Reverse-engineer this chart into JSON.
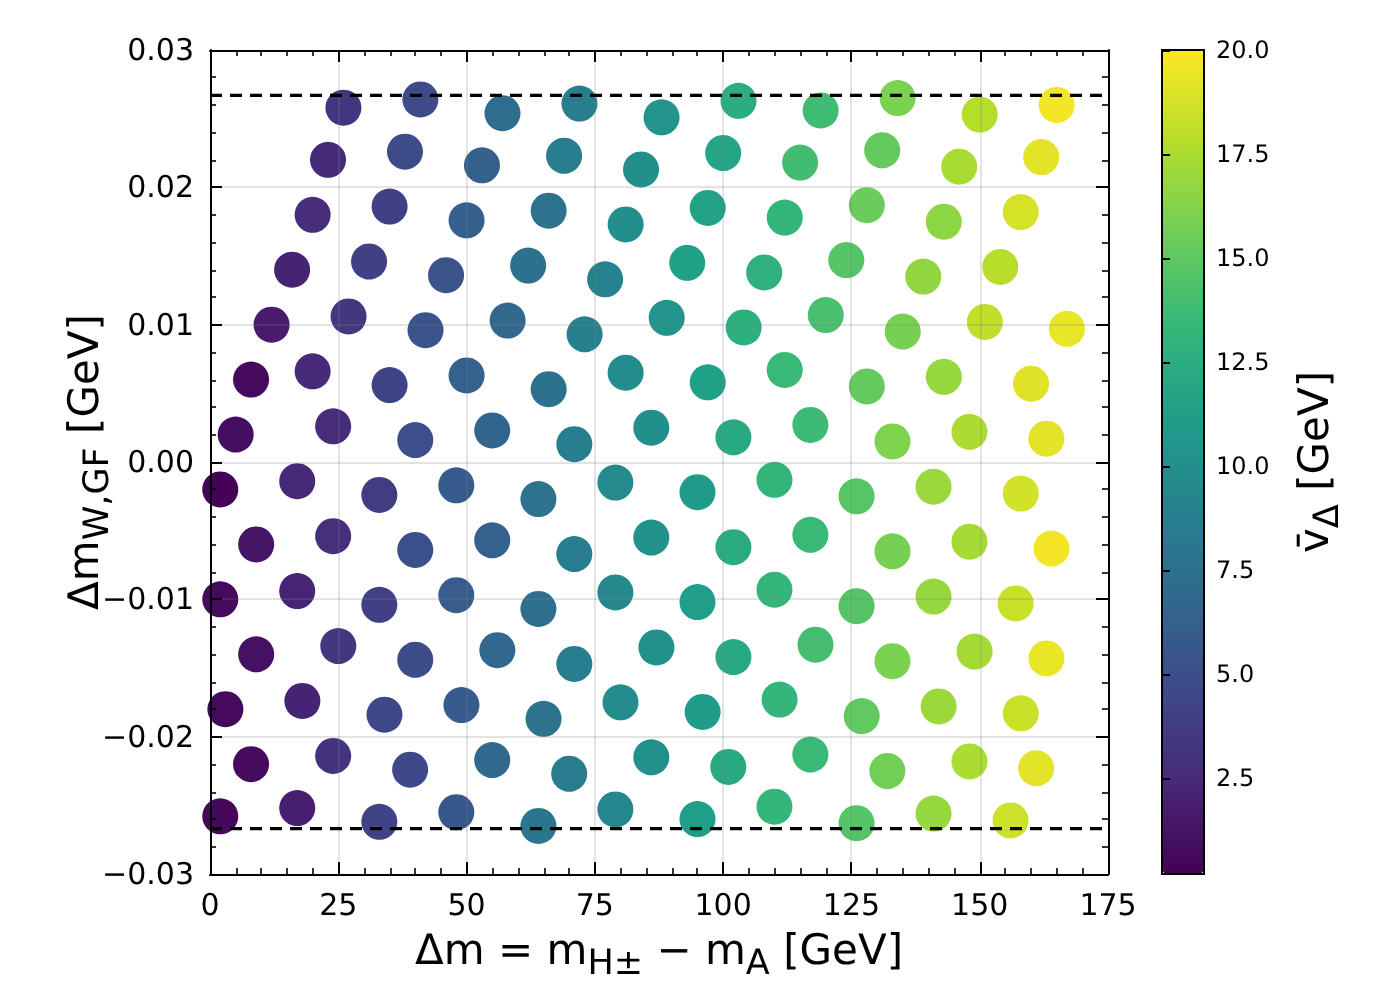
{
  "chart_data": {
    "type": "scatter",
    "xlabel": "Δm = m$_{H±}$ − m$_{A}$ [GeV]",
    "ylabel": "Δm$_{W,GF}$ [GeV]",
    "clabel": "v̄$_{Δ}$ [GeV]",
    "x": [
      2,
      17,
      33,
      48,
      64,
      79,
      95,
      110,
      126,
      141,
      156,
      8,
      24,
      39,
      55,
      70,
      86,
      101,
      117,
      132,
      148,
      161,
      3,
      18,
      34,
      49,
      65,
      80,
      96,
      111,
      127,
      142,
      158,
      9,
      25,
      40,
      56,
      71,
      87,
      102,
      118,
      133,
      149,
      163,
      2,
      17,
      33,
      48,
      64,
      79,
      95,
      110,
      126,
      141,
      157,
      9,
      24,
      40,
      55,
      71,
      86,
      102,
      117,
      133,
      148,
      164,
      2,
      17,
      33,
      48,
      64,
      79,
      95,
      110,
      126,
      141,
      158,
      5,
      24,
      40,
      55,
      71,
      86,
      102,
      117,
      133,
      148,
      163,
      8,
      20,
      35,
      50,
      66,
      81,
      97,
      112,
      128,
      143,
      160,
      12,
      27,
      42,
      58,
      73,
      89,
      104,
      120,
      135,
      151,
      167,
      16,
      31,
      46,
      62,
      77,
      93,
      108,
      124,
      139,
      154,
      20,
      35,
      50,
      66,
      81,
      97,
      112,
      128,
      143,
      158,
      23,
      38,
      53,
      69,
      84,
      100,
      115,
      131,
      146,
      162,
      26,
      41,
      57,
      72,
      88,
      103,
      119,
      134,
      150,
      165
    ],
    "values": [
      -0.0258,
      -0.0252,
      -0.0262,
      -0.0255,
      -0.0265,
      -0.0253,
      -0.026,
      -0.0251,
      -0.0263,
      -0.0256,
      -0.0261,
      -0.022,
      -0.0214,
      -0.0224,
      -0.0217,
      -0.0227,
      -0.0215,
      -0.0222,
      -0.0213,
      -0.0225,
      -0.0218,
      -0.0223,
      -0.018,
      -0.0174,
      -0.0184,
      -0.0177,
      -0.0187,
      -0.0175,
      -0.0182,
      -0.0173,
      -0.0185,
      -0.0178,
      -0.0183,
      -0.014,
      -0.0134,
      -0.0144,
      -0.0137,
      -0.0147,
      -0.0135,
      -0.0142,
      -0.0133,
      -0.0145,
      -0.0138,
      -0.0143,
      -0.01,
      -0.0094,
      -0.0104,
      -0.0097,
      -0.0107,
      -0.0095,
      -0.0102,
      -0.0093,
      -0.0105,
      -0.0098,
      -0.0103,
      -0.006,
      -0.0054,
      -0.0064,
      -0.0057,
      -0.0067,
      -0.0055,
      -0.0062,
      -0.0053,
      -0.0065,
      -0.0058,
      -0.0063,
      -0.002,
      -0.0014,
      -0.0024,
      -0.0017,
      -0.0027,
      -0.0015,
      -0.0022,
      -0.0013,
      -0.0025,
      -0.0018,
      -0.0023,
      0.002,
      0.0026,
      0.0016,
      0.0023,
      0.0013,
      0.0025,
      0.0018,
      0.0027,
      0.0015,
      0.0022,
      0.0017,
      0.006,
      0.0066,
      0.0056,
      0.0063,
      0.0053,
      0.0065,
      0.0058,
      0.0067,
      0.0055,
      0.0062,
      0.0057,
      0.01,
      0.0106,
      0.0096,
      0.0103,
      0.0093,
      0.0105,
      0.0098,
      0.0107,
      0.0095,
      0.0102,
      0.0097,
      0.014,
      0.0146,
      0.0136,
      0.0143,
      0.0133,
      0.0145,
      0.0138,
      0.0147,
      0.0135,
      0.0142,
      0.018,
      0.0186,
      0.0176,
      0.0183,
      0.0173,
      0.0185,
      0.0178,
      0.0187,
      0.0175,
      0.0182,
      0.022,
      0.0226,
      0.0216,
      0.0223,
      0.0213,
      0.0225,
      0.0218,
      0.0227,
      0.0215,
      0.0222,
      0.0258,
      0.0264,
      0.0254,
      0.0261,
      0.0251,
      0.0263,
      0.0256,
      0.0265,
      0.0253,
      0.026
    ],
    "cvalues": [
      0.6,
      1.9,
      4.2,
      5.6,
      8.0,
      9.4,
      11.2,
      13.3,
      14.6,
      16.8,
      18.5,
      0.8,
      3.1,
      4.6,
      6.9,
      8.4,
      10.2,
      12.2,
      13.6,
      15.7,
      17.5,
      19.2,
      0.7,
      2.1,
      4.5,
      5.9,
      7.7,
      9.8,
      11.1,
      13.3,
      15.1,
      17.0,
      18.4,
      1.1,
      3.4,
      4.9,
      6.7,
      8.7,
      10.1,
      12.2,
      14.0,
      16.0,
      17.3,
      19.4,
      0.7,
      2.2,
      4.0,
      6.0,
      7.4,
      9.5,
      11.3,
      13.3,
      14.6,
      16.8,
      18.4,
      1.3,
      2.9,
      5.1,
      6.3,
      8.6,
      10.3,
      12.3,
      13.6,
      15.9,
      17.3,
      19.7,
      0.3,
      2.4,
      3.8,
      5.9,
      7.7,
      9.6,
      11.0,
      13.2,
      14.7,
      17.0,
      18.7,
      1.0,
      2.7,
      5.0,
      6.6,
      8.7,
      10.0,
      12.2,
      13.7,
      16.1,
      17.5,
      19.2,
      0.8,
      2.6,
      4.3,
      6.3,
      7.6,
      9.8,
      11.4,
      13.6,
      15.2,
      16.8,
      19.1,
      1.7,
      3.4,
      5.3,
      6.7,
      8.8,
      10.4,
      12.7,
      14.2,
      15.9,
      18.1,
      19.4,
      2.1,
      4.0,
      5.3,
      7.6,
      9.0,
      11.4,
      12.8,
      14.6,
      16.7,
      17.9,
      2.7,
      4.0,
      6.2,
      7.7,
      10.0,
      11.6,
      13.2,
      15.4,
      16.6,
      18.8,
      2.6,
      4.8,
      6.2,
      8.6,
      10.0,
      11.8,
      13.9,
      15.2,
      17.4,
      19.2,
      3.3,
      4.8,
      7.2,
      8.6,
      10.4,
      12.5,
      13.8,
      16.0,
      17.8,
      19.7
    ],
    "xlim": [
      0,
      175
    ],
    "xticks": [
      0,
      25,
      50,
      75,
      100,
      125,
      150,
      175
    ],
    "ylim": [
      -0.03,
      0.03
    ],
    "yticks": [
      {
        "value": -0.03,
        "label": "−0.03"
      },
      {
        "value": -0.02,
        "label": "−0.02"
      },
      {
        "value": -0.01,
        "label": "−0.01"
      },
      {
        "value": 0,
        "label": "0.00"
      },
      0.01,
      0.02,
      0.03
    ],
    "clim": [
      0.2,
      20
    ],
    "cticks": [
      2.5,
      {
        "value": 5,
        "label": "5.0"
      },
      7.5,
      {
        "value": 10,
        "label": "10.0"
      },
      12.5,
      {
        "value": 15,
        "label": "15.0"
      },
      17.5,
      {
        "value": 20,
        "label": "20.0"
      }
    ],
    "ref_lines": [
      {
        "axis": "y",
        "value": 0.0267,
        "color": "#000000",
        "line_style": "dashed"
      },
      {
        "axis": "y",
        "value": -0.0267,
        "color": "#000000",
        "line_style": "dashed"
      }
    ],
    "grid": true,
    "marker": "circle"
  }
}
